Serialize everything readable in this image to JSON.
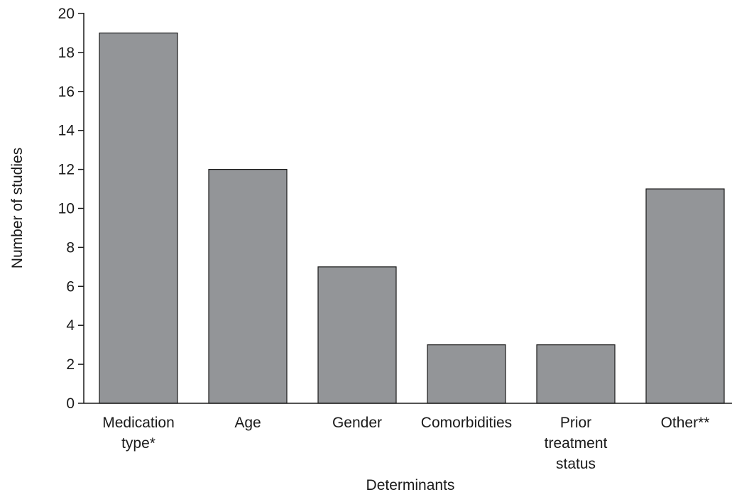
{
  "chart_data": {
    "type": "bar",
    "categories": [
      "Medication type*",
      "Age",
      "Gender",
      "Comorbidities",
      "Prior treatment status",
      "Other**"
    ],
    "category_lines": [
      [
        "Medication",
        "type*"
      ],
      [
        "Age"
      ],
      [
        "Gender"
      ],
      [
        "Comorbidities"
      ],
      [
        "Prior",
        "treatment",
        "status"
      ],
      [
        "Other**"
      ]
    ],
    "values": [
      19,
      12,
      7,
      3,
      3,
      11
    ],
    "xlabel": "Determinants",
    "ylabel": "Number of studies",
    "ylim": [
      0,
      20
    ],
    "yticks": [
      0,
      2,
      4,
      6,
      8,
      10,
      12,
      14,
      16,
      18,
      20
    ],
    "grid": false,
    "colors": {
      "bar_fill": "#939598",
      "bar_stroke": "#1a1a1a",
      "axis": "#1a1a1a",
      "text": "#1a1a1a"
    }
  }
}
